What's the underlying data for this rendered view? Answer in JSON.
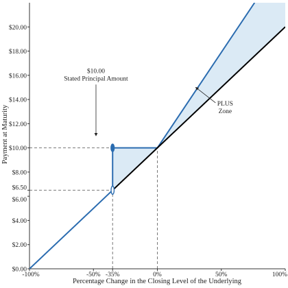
{
  "chart_data": {
    "type": "line",
    "xlabel": "Percentage Change in the Closing Level of the Underlying",
    "ylabel": "Payment at Maturity",
    "xlim": [
      -100,
      100
    ],
    "ylim": [
      0,
      22
    ],
    "x_ticks": [
      {
        "value": -100,
        "label": "-100%"
      },
      {
        "value": -50,
        "label": "-50%"
      },
      {
        "value": -35,
        "label": "-35%"
      },
      {
        "value": 0,
        "label": "0%"
      },
      {
        "value": 50,
        "label": "50%"
      },
      {
        "value": 100,
        "label": "100%"
      }
    ],
    "y_ticks": [
      {
        "value": 0,
        "label": "$0.00"
      },
      {
        "value": 2,
        "label": "$2.00"
      },
      {
        "value": 4,
        "label": "$4.00"
      },
      {
        "value": 6,
        "label": "$6.00"
      },
      {
        "value": 6.5,
        "label": "$6.50"
      },
      {
        "value": 8,
        "label": "$8.00"
      },
      {
        "value": 10,
        "label": "$10.00"
      },
      {
        "value": 12,
        "label": "$12.00"
      },
      {
        "value": 14,
        "label": "$14.00"
      },
      {
        "value": 16,
        "label": "$16.00"
      },
      {
        "value": 18,
        "label": "$18.00"
      },
      {
        "value": 20,
        "label": "$20.00"
      }
    ],
    "series": [
      {
        "key": "plus",
        "color": "#2b6cb0",
        "points": [
          [
            -100,
            0
          ],
          [
            -35,
            6.5
          ],
          [
            -35,
            10
          ],
          [
            0,
            10
          ],
          [
            76,
            22
          ]
        ]
      },
      {
        "key": "underlying",
        "color": "#000000",
        "points": [
          [
            -35,
            6.5
          ],
          [
            0,
            10
          ],
          [
            100,
            20
          ]
        ]
      }
    ],
    "shaded_regions": [
      {
        "color": "#dbeaf5",
        "points": [
          [
            -35,
            6.5
          ],
          [
            -35,
            10
          ],
          [
            0,
            10
          ]
        ]
      },
      {
        "color": "#dbeaf5",
        "points": [
          [
            0,
            10
          ],
          [
            76,
            22
          ],
          [
            100,
            22
          ],
          [
            100,
            20
          ]
        ]
      }
    ],
    "reference_lines": [
      {
        "orientation": "horizontal",
        "value": 10,
        "x_from": -100,
        "x_to": -35
      },
      {
        "orientation": "horizontal",
        "value": 6.5,
        "x_from": -100,
        "x_to": -35
      },
      {
        "orientation": "vertical",
        "value": -35,
        "y_from": 0,
        "y_to": 10
      },
      {
        "orientation": "vertical",
        "value": 0,
        "y_from": 0,
        "y_to": 10
      }
    ],
    "markers": [
      {
        "shape": "filled-ellipse",
        "x": -35,
        "y": 10,
        "color": "#2b6cb0"
      },
      {
        "shape": "open-ellipse",
        "x": -35,
        "y": 6.5,
        "color": "#2b6cb0"
      }
    ],
    "annotations": [
      {
        "lines": [
          "$10.00",
          "Stated Principal Amount"
        ],
        "x": -48,
        "y": 16.2,
        "arrow_to": [
          -48,
          11
        ]
      },
      {
        "lines": [
          "PLUS",
          "Zone"
        ],
        "x": 53,
        "y": 13.5,
        "arrow_to": [
          30,
          15
        ]
      }
    ],
    "grid": false
  }
}
